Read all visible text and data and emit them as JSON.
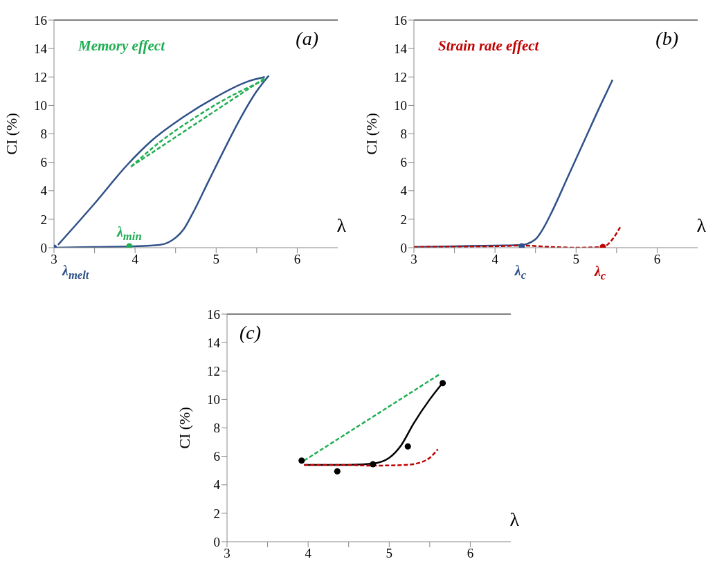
{
  "chart_data": [
    {
      "type": "line",
      "title": "(a)",
      "xlabel": "λ",
      "ylabel": "CI (%)",
      "xlim": [
        3,
        6.5
      ],
      "ylim": [
        0,
        16
      ],
      "xticks": [
        3,
        {
          "value": 3.5,
          "label": null
        },
        4,
        {
          "value": 4.5,
          "label": null
        },
        5,
        {
          "value": 5.5,
          "label": null
        },
        6
      ],
      "yticks": [
        0,
        2,
        4,
        6,
        8,
        10,
        12,
        14,
        16
      ],
      "grid": false,
      "annotations": [
        "Memory effect",
        {
          "text": "λ$_{melt}$",
          "x": 3,
          "y": 0
        },
        {
          "text": "λ$_{min}$",
          "x": 3.93,
          "y": 0.1
        }
      ],
      "series": [
        {
          "color": "#2f5188",
          "line_style": "solid",
          "marker": "none",
          "x": [
            3,
            3.5,
            4,
            4.3,
            4.45,
            4.6,
            4.7,
            4.9,
            5.1,
            5.3,
            5.5,
            5.65
          ],
          "values": [
            0,
            0.05,
            0.1,
            0.2,
            0.5,
            1.3,
            2.3,
            4.6,
            6.9,
            9.1,
            11,
            12.1
          ]
        },
        {
          "color": "#2f5188",
          "line_style": "solid",
          "marker": "none",
          "x": [
            3.05,
            3.5,
            3.9,
            4.2,
            4.6,
            5.0,
            5.4,
            5.6
          ],
          "values": [
            0.2,
            3.1,
            5.8,
            7.5,
            9.2,
            10.6,
            11.7,
            12
          ]
        },
        {
          "color": "#1fae52",
          "line_style": "dashed",
          "marker": "none",
          "x": [
            3.95,
            5.62
          ],
          "values": [
            5.7,
            12
          ]
        },
        {
          "color": "#1fae52",
          "line_style": "dashed",
          "marker": "none",
          "x": [
            3.95,
            4.3,
            4.7,
            5.1,
            5.6
          ],
          "values": [
            5.7,
            7.4,
            9.0,
            10.4,
            11.8
          ]
        },
        {
          "type": "scatter",
          "color": "#2f5188",
          "marker": "circle",
          "x": [
            3
          ],
          "values": [
            0
          ]
        },
        {
          "type": "scatter",
          "color": "#1fae52",
          "marker": "circle",
          "x": [
            3.93
          ],
          "values": [
            0.1
          ]
        }
      ]
    },
    {
      "type": "line",
      "title": "(b)",
      "xlabel": "λ",
      "ylabel": "CI (%)",
      "xlim": [
        3,
        6.5
      ],
      "ylim": [
        0,
        16
      ],
      "xticks": [
        3,
        {
          "value": 3.5,
          "label": null
        },
        4,
        {
          "value": 4.5,
          "label": null
        },
        5,
        {
          "value": 5.5,
          "label": null
        },
        6
      ],
      "yticks": [
        0,
        2,
        4,
        6,
        8,
        10,
        12,
        14,
        16
      ],
      "grid": false,
      "annotations": [
        "Strain rate effect",
        {
          "text": "λ$_{c}$",
          "x": 4.33,
          "y": 0.1
        },
        {
          "text": "λ$_{c}$",
          "x": 5.33,
          "y": 0.05
        }
      ],
      "series": [
        {
          "color": "#2f5188",
          "line_style": "solid",
          "marker": "none",
          "x": [
            3,
            3.5,
            4,
            4.33,
            4.5,
            4.6,
            4.7,
            4.9,
            5.1,
            5.3,
            5.45
          ],
          "values": [
            0.05,
            0.1,
            0.15,
            0.2,
            0.6,
            1.4,
            2.5,
            5,
            7.5,
            10,
            11.8
          ]
        },
        {
          "color": "#c00000",
          "line_style": "dashed",
          "marker": "none",
          "x": [
            3,
            3.5,
            4,
            4.33,
            4.7,
            5,
            5.33,
            5.45,
            5.55
          ],
          "values": [
            0.05,
            0.07,
            0.1,
            0.15,
            0.05,
            0,
            0.05,
            0.6,
            1.5
          ]
        },
        {
          "type": "scatter",
          "color": "#2f5188",
          "marker": "circle",
          "x": [
            4.33
          ],
          "values": [
            0.1
          ]
        },
        {
          "type": "scatter",
          "color": "#c00000",
          "marker": "circle",
          "x": [
            5.33
          ],
          "values": [
            0.05
          ]
        }
      ]
    },
    {
      "type": "line",
      "title": "(c)",
      "xlabel": "λ",
      "ylabel": "CI (%)",
      "xlim": [
        3,
        6.5
      ],
      "ylim": [
        0,
        16
      ],
      "xticks": [
        3,
        {
          "value": 3.5,
          "label": null
        },
        4,
        {
          "value": 4.5,
          "label": null
        },
        5,
        {
          "value": 5.5,
          "label": null
        },
        6
      ],
      "yticks": [
        0,
        2,
        4,
        6,
        8,
        10,
        12,
        14,
        16
      ],
      "grid": false,
      "series": [
        {
          "color": "#1fae52",
          "line_style": "dashed",
          "marker": "none",
          "x": [
            3.95,
            5.63
          ],
          "values": [
            5.7,
            11.8
          ]
        },
        {
          "color": "#000000",
          "line_style": "solid",
          "marker": "none",
          "x": [
            3.95,
            4.4,
            4.8,
            5.0,
            5.15,
            5.3,
            5.5,
            5.65
          ],
          "values": [
            5.4,
            5.4,
            5.5,
            5.9,
            6.8,
            8.3,
            10,
            11.1
          ]
        },
        {
          "color": "#c00000",
          "line_style": "dashed",
          "marker": "none",
          "x": [
            3.95,
            4.4,
            4.8,
            5.2,
            5.4,
            5.5,
            5.6
          ],
          "values": [
            5.4,
            5.4,
            5.35,
            5.4,
            5.6,
            5.9,
            6.5
          ]
        },
        {
          "type": "scatter",
          "color": "#000000",
          "marker": "circle",
          "x": [
            3.92,
            4.36,
            4.8,
            5.23,
            5.66
          ],
          "values": [
            5.7,
            4.95,
            5.45,
            6.7,
            11.15
          ]
        }
      ]
    }
  ]
}
